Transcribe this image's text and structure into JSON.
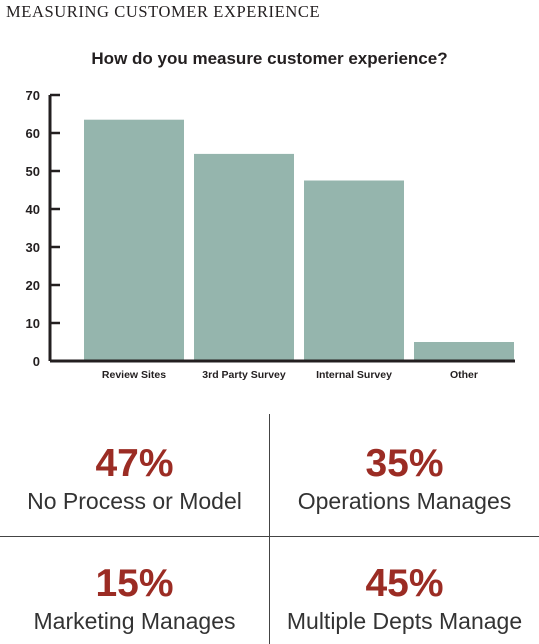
{
  "header": {
    "section_title": "MEASURING CUSTOMER EXPERIENCE"
  },
  "colors": {
    "bar": "#95b5ad",
    "accent": "#9b2c24",
    "axis": "#231f20"
  },
  "chart_data": {
    "type": "bar",
    "title": "How do you measure customer experience?",
    "xlabel": "",
    "ylabel": "",
    "categories": [
      "Review Sites",
      "3rd Party Survey",
      "Internal Survey",
      "Other"
    ],
    "values": [
      63.5,
      54.5,
      47.5,
      5
    ],
    "ylim": [
      0,
      70
    ],
    "yticks": [
      0,
      10,
      20,
      30,
      40,
      50,
      60,
      70
    ],
    "grid": false,
    "legend": "none"
  },
  "stats": [
    {
      "value": "47%",
      "label": "No Process or Model"
    },
    {
      "value": "35%",
      "label": "Operations Manages"
    },
    {
      "value": "15%",
      "label": "Marketing Manages"
    },
    {
      "value": "45%",
      "label": "Multiple Depts Manage"
    }
  ]
}
